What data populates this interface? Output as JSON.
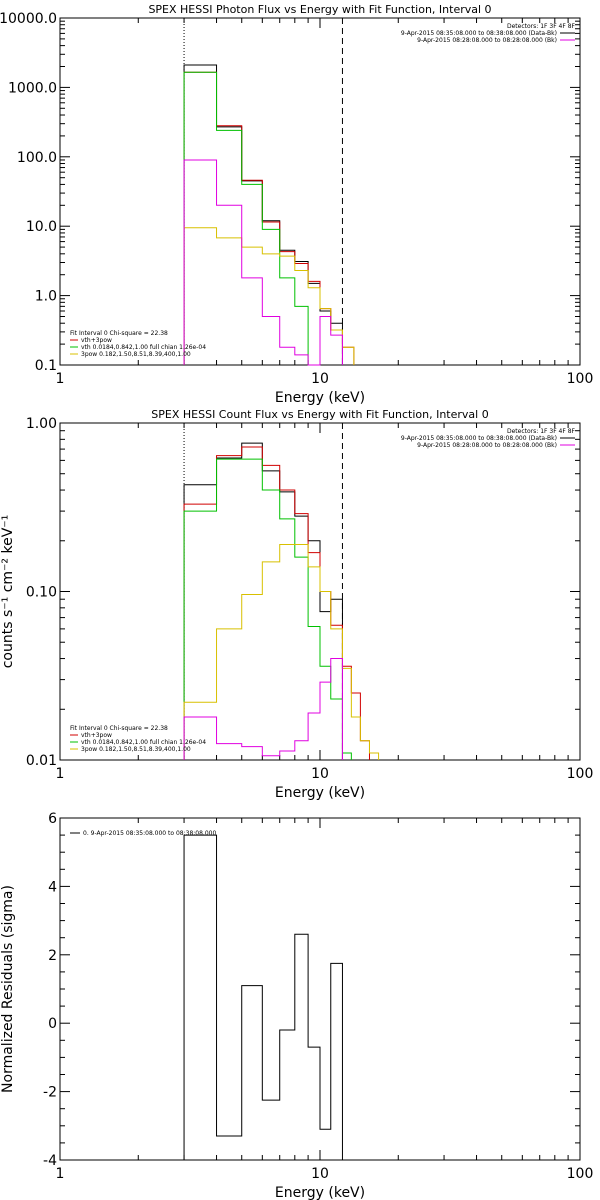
{
  "chart_data": [
    {
      "type": "line",
      "title": "SPEX HESSI Photon Flux vs Energy with Fit Function, Interval 0",
      "xlabel": "Energy (keV)",
      "ylabel": "",
      "xscale": "log",
      "yscale": "log",
      "xlim": [
        1,
        100
      ],
      "ylim": [
        0.1,
        10000
      ],
      "xticks": [
        {
          "v": 1,
          "label": "1"
        },
        {
          "v": 10,
          "label": "10"
        },
        {
          "v": 100,
          "label": "100"
        }
      ],
      "yticks": [
        {
          "v": 0.1,
          "label": "0.1"
        },
        {
          "v": 1,
          "label": "1.0"
        },
        {
          "v": 10,
          "label": "10.0"
        },
        {
          "v": 100,
          "label": "100.0"
        },
        {
          "v": 1000,
          "label": "1000.0"
        },
        {
          "v": 10000,
          "label": "10000.0"
        }
      ],
      "vlines": [
        {
          "x": 3.0,
          "style": "dotted"
        },
        {
          "x": 12.2,
          "style": "dashed"
        }
      ],
      "legend_top_right": {
        "detectors": "Detectors: 1F 3F 4F 8F",
        "entries": [
          {
            "label": "9-Apr-2015 08:35:08.000 to 08:38:08.000 (Data-Bk)",
            "color": "#000000"
          },
          {
            "label": "9-Apr-2015 08:28:08.000 to 08:28:08.000 (Bk)",
            "color": "#e000e0"
          }
        ]
      },
      "legend_bottom_left": {
        "header": "Fit Interval 0   Chi-square = 22.38",
        "entries": [
          {
            "label": "vth+3pow",
            "color": "#d00000"
          },
          {
            "label": "vth 0.0184,0.842,1.00  full chian 1.26e-04",
            "color": "#00c000"
          },
          {
            "label": "3pow 0.182,1.50,8.51,8.39,400,1.00",
            "color": "#d8c000"
          }
        ]
      },
      "series": [
        {
          "name": "",
          "color": "#000000",
          "edges": [
            3.0,
            4.0,
            5.0,
            6.0,
            7.0,
            8.0,
            9.0,
            10.0,
            11.0,
            12.2
          ],
          "values": [
            2100,
            270,
            45,
            12,
            4.5,
            3.1,
            1.5,
            0.6,
            0.4
          ]
        },
        {
          "name": "",
          "color": "#d00000",
          "edges": [
            3.0,
            4.0,
            5.0,
            6.0,
            7.0,
            8.0,
            9.0,
            10.0,
            11.0,
            12.2,
            13.5
          ],
          "values": [
            1650,
            280,
            46,
            11.5,
            4.3,
            2.9,
            1.6,
            0.65,
            0.32,
            0.18
          ]
        },
        {
          "name": "",
          "color": "#00c000",
          "edges": [
            3.0,
            4.0,
            5.0,
            6.0,
            7.0,
            8.0,
            9.0,
            10.0
          ],
          "values": [
            1650,
            240,
            40,
            9,
            1.8,
            0.7,
            0.1
          ]
        },
        {
          "name": "",
          "color": "#d8c000",
          "edges": [
            3.0,
            4.0,
            5.0,
            6.0,
            7.0,
            8.0,
            9.0,
            10.0,
            11.0,
            12.2,
            13.5
          ],
          "values": [
            9.5,
            6.8,
            5,
            4,
            3.7,
            2.3,
            1.3,
            0.65,
            0.32,
            0.18
          ]
        },
        {
          "name": "",
          "color": "#e000e0",
          "edges": [
            3.0,
            4.0,
            5.0,
            6.0,
            7.0,
            8.0,
            9.0,
            10.0,
            11.0,
            12.2
          ],
          "values": [
            90,
            20,
            1.8,
            0.5,
            0.18,
            0.14,
            0.1,
            0.5,
            0.27
          ]
        }
      ]
    },
    {
      "type": "line",
      "title": "SPEX HESSI Count Flux vs Energy with Fit Function, Interval 0",
      "xlabel": "Energy (keV)",
      "ylabel": "counts s⁻¹ cm⁻² keV⁻¹",
      "xscale": "log",
      "yscale": "log",
      "xlim": [
        1,
        100
      ],
      "ylim": [
        0.01,
        1.0
      ],
      "xticks": [
        {
          "v": 1,
          "label": "1"
        },
        {
          "v": 10,
          "label": "10"
        },
        {
          "v": 100,
          "label": "100"
        }
      ],
      "yticks": [
        {
          "v": 0.01,
          "label": "0.01"
        },
        {
          "v": 0.1,
          "label": "0.10"
        },
        {
          "v": 1,
          "label": "1.00"
        }
      ],
      "vlines": [
        {
          "x": 3.0,
          "style": "dotted"
        },
        {
          "x": 12.2,
          "style": "dashed"
        }
      ],
      "legend_top_right": {
        "detectors": "Detectors: 1F 3F 4F 8F",
        "entries": [
          {
            "label": "9-Apr-2015 08:35:08.000 to 08:38:08.000 (Data-Bk)",
            "color": "#000000"
          },
          {
            "label": "9-Apr-2015 08:28:08.000 to 08:28:08.000 (Bk)",
            "color": "#e000e0"
          }
        ]
      },
      "legend_bottom_left": {
        "header": "Fit Interval 0   Chi-square = 22.38",
        "entries": [
          {
            "label": "vth+3pow",
            "color": "#d00000"
          },
          {
            "label": "vth 0.0184,0.842,1.00  full chian 1.26e-04",
            "color": "#00c000"
          },
          {
            "label": "3pow 0.182,1.50,8.51,8.39,400,1.00",
            "color": "#d8c000"
          }
        ]
      },
      "series": [
        {
          "name": "",
          "color": "#000000",
          "edges": [
            3.0,
            4.0,
            5.0,
            6.0,
            7.0,
            8.0,
            9.0,
            10.0,
            11.0,
            12.2
          ],
          "values": [
            0.43,
            0.62,
            0.76,
            0.52,
            0.39,
            0.28,
            0.2,
            0.076,
            0.09
          ]
        },
        {
          "name": "",
          "color": "#d00000",
          "edges": [
            3.0,
            4.0,
            5.0,
            6.0,
            7.0,
            8.0,
            9.0,
            10.0,
            11.0,
            12.2,
            13.2,
            14.3,
            15.5
          ],
          "values": [
            0.33,
            0.64,
            0.72,
            0.56,
            0.4,
            0.29,
            0.17,
            0.1,
            0.063,
            0.036,
            0.025,
            0.013
          ]
        },
        {
          "name": "",
          "color": "#00c000",
          "edges": [
            3.0,
            4.0,
            5.0,
            6.0,
            7.0,
            8.0,
            9.0,
            10.0,
            11.0,
            12.2,
            13.2
          ],
          "values": [
            0.3,
            0.61,
            0.61,
            0.4,
            0.27,
            0.16,
            0.062,
            0.036,
            0.023,
            0.011
          ]
        },
        {
          "name": "",
          "color": "#d8c000",
          "edges": [
            3.0,
            4.0,
            5.0,
            6.0,
            7.0,
            8.0,
            9.0,
            10.0,
            11.0,
            12.2,
            13.2,
            14.3,
            15.5,
            16.8
          ],
          "values": [
            0.022,
            0.06,
            0.096,
            0.15,
            0.19,
            0.19,
            0.14,
            0.1,
            0.06,
            0.035,
            0.018,
            0.013,
            0.011
          ]
        },
        {
          "name": "",
          "color": "#e000e0",
          "edges": [
            3.0,
            4.0,
            5.0,
            6.0,
            7.0,
            8.0,
            9.0,
            10.0,
            11.0,
            12.2
          ],
          "values": [
            0.018,
            0.0125,
            0.012,
            0.0106,
            0.0113,
            0.013,
            0.019,
            0.029,
            0.04
          ]
        }
      ]
    },
    {
      "type": "line",
      "title": "",
      "xlabel": "Energy (keV)",
      "ylabel": "Normalized Residuals (sigma)",
      "xscale": "log",
      "yscale": "linear",
      "xlim": [
        1,
        100
      ],
      "ylim": [
        -4,
        6
      ],
      "xticks": [
        {
          "v": 1,
          "label": "1"
        },
        {
          "v": 10,
          "label": "10"
        },
        {
          "v": 100,
          "label": "100"
        }
      ],
      "yticks": [
        {
          "v": -4,
          "label": "-4"
        },
        {
          "v": -2,
          "label": "-2"
        },
        {
          "v": 0,
          "label": "0"
        },
        {
          "v": 2,
          "label": "2"
        },
        {
          "v": 4,
          "label": "4"
        },
        {
          "v": 6,
          "label": "6"
        }
      ],
      "legend_top_left": {
        "entries": [
          {
            "label": "0. 9-Apr-2015 08:35:08.000 to 08:38:08.000",
            "color": "#000000"
          }
        ]
      },
      "series": [
        {
          "name": "",
          "color": "#000000",
          "edges": [
            3.0,
            4.0,
            5.0,
            6.0,
            7.0,
            8.0,
            9.0,
            10.0,
            11.0,
            12.2
          ],
          "values": [
            5.5,
            -3.3,
            1.1,
            -2.25,
            -0.2,
            2.6,
            -0.7,
            -3.1,
            1.75
          ]
        }
      ]
    }
  ]
}
